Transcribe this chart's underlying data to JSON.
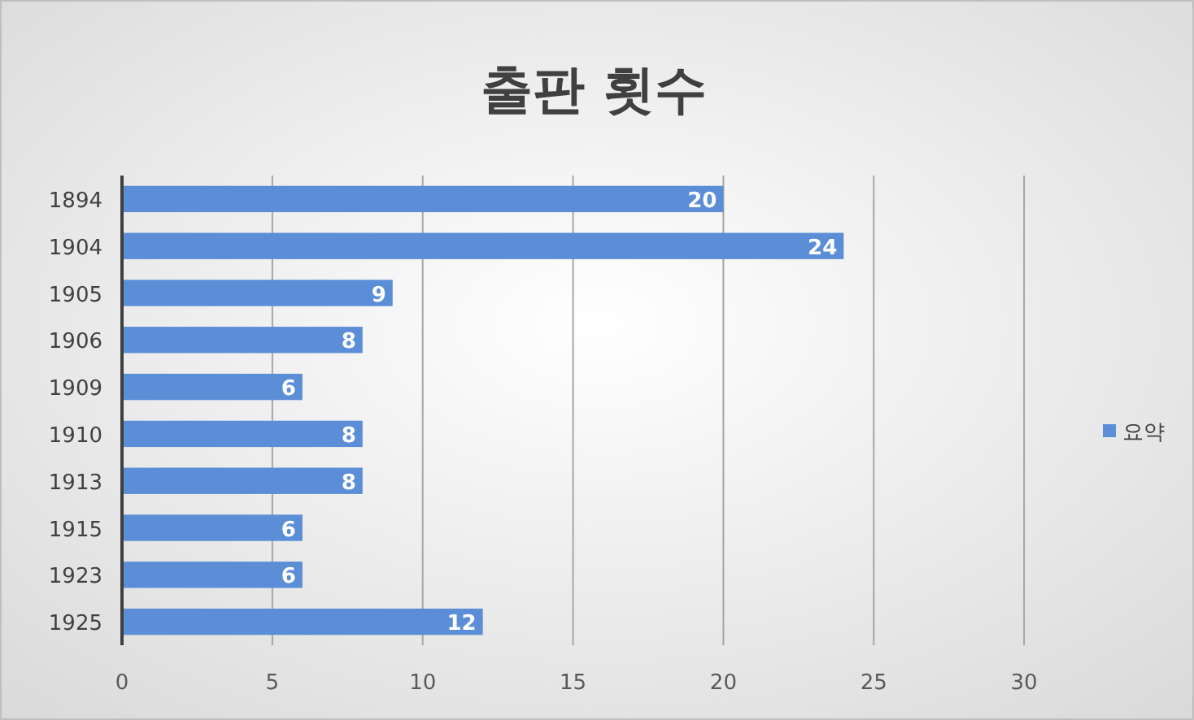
{
  "chart_data": {
    "type": "bar",
    "orientation": "horizontal",
    "title": "출판 횟수",
    "categories": [
      "1894",
      "1904",
      "1905",
      "1906",
      "1909",
      "1910",
      "1913",
      "1915",
      "1923",
      "1925"
    ],
    "series": [
      {
        "name": "요약",
        "color": "#5b8ed6",
        "values": [
          20,
          24,
          9,
          8,
          6,
          8,
          8,
          6,
          6,
          12
        ]
      }
    ],
    "xlim": [
      0,
      33
    ],
    "xticks": [
      0,
      5,
      10,
      15,
      20,
      25,
      30
    ],
    "grid": "x",
    "legend": "right",
    "data_labels": true
  }
}
